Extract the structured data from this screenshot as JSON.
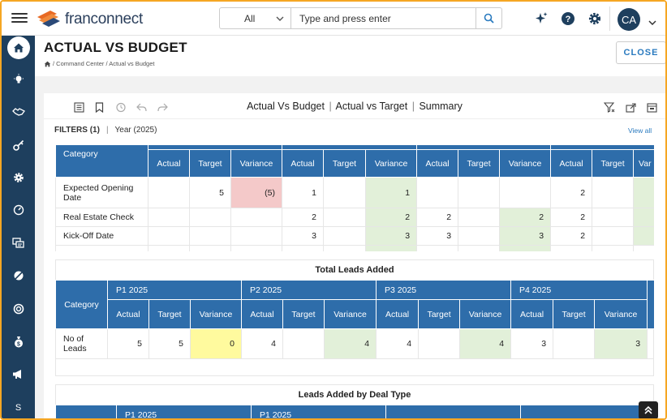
{
  "header": {
    "logo_text": "franconnect",
    "search_scope": "All",
    "search_placeholder": "Type and press enter",
    "avatar_initials": "CA"
  },
  "page": {
    "title": "ACTUAL VS BUDGET",
    "breadcrumb": "/ Command Center / Actual vs Budget",
    "close_label": "CLOSE"
  },
  "toolbar": {
    "title_1": "Actual Vs Budget",
    "title_2": "Actual vs Target",
    "title_3": "Summary",
    "separator": "|"
  },
  "filters": {
    "label": "FILTERS (1)",
    "separator": "|",
    "filter_name": "Year",
    "filter_value": "(2025)",
    "view_all": "View all"
  },
  "table1": {
    "category_header": "Category",
    "sub_headers": [
      "Actual",
      "Target",
      "Variance",
      "Actual",
      "Target",
      "Variance",
      "Actual",
      "Target",
      "Variance",
      "Actual",
      "Target",
      "Var"
    ],
    "rows": [
      {
        "category": "Expected Opening Date",
        "cells": [
          "",
          "5",
          "(5)",
          "1",
          "",
          "1",
          "",
          "",
          "",
          "2",
          "",
          ""
        ]
      },
      {
        "category": "Real Estate Check",
        "cells": [
          "",
          "",
          "",
          "2",
          "",
          "2",
          "2",
          "",
          "2",
          "2",
          "",
          ""
        ]
      },
      {
        "category": "Kick-Off Date",
        "cells": [
          "",
          "",
          "",
          "3",
          "",
          "3",
          "3",
          "",
          "3",
          "2",
          "",
          ""
        ]
      }
    ]
  },
  "table2": {
    "title": "Total Leads Added",
    "category_header": "Category",
    "periods": [
      "P1 2025",
      "P2 2025",
      "P3 2025",
      "P4 2025"
    ],
    "sub_headers": [
      "Actual",
      "Target",
      "Variance",
      "Actual",
      "Target",
      "Variance",
      "Actual",
      "Target",
      "Variance",
      "Actual",
      "Target",
      "Variance"
    ],
    "rows": [
      {
        "category": "No of Leads",
        "cells": [
          "5",
          "5",
          "0",
          "4",
          "",
          "4",
          "4",
          "",
          "4",
          "3",
          "",
          "3"
        ]
      }
    ]
  },
  "table3": {
    "title": "Leads Added by Deal Type",
    "periods": [
      "P1 2025",
      "P1 2025"
    ]
  },
  "sidebar": {
    "bottom_letter": "S"
  }
}
